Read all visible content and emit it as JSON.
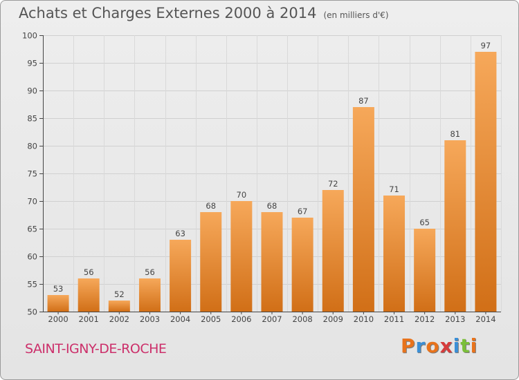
{
  "page": {
    "title": "Achats et Charges Externes 2000 à 2014",
    "subtitle": "(en milliers d'€)",
    "place": "SAINT-IGNY-DE-ROCHE",
    "logo": "Proxiti"
  },
  "colors": {
    "bar_light": "#f6a85a",
    "bar_dark": "#d16f17",
    "logo_letters": [
      "#e8731c",
      "#3b8fd6",
      "#e8731c",
      "#d63b3b",
      "#3b8fd6",
      "#7bbf3a",
      "#e8731c"
    ]
  },
  "chart_data": {
    "type": "bar",
    "title": "Achats et Charges Externes 2000 à 2014",
    "subtitle": "(en milliers d'€)",
    "xlabel": "",
    "ylabel": "",
    "categories": [
      "2000",
      "2001",
      "2002",
      "2003",
      "2004",
      "2005",
      "2006",
      "2007",
      "2008",
      "2009",
      "2010",
      "2011",
      "2012",
      "2013",
      "2014"
    ],
    "values": [
      53,
      56,
      52,
      56,
      63,
      68,
      70,
      68,
      67,
      72,
      87,
      71,
      65,
      81,
      97
    ],
    "ylim": [
      50,
      100
    ],
    "yticks": [
      50,
      55,
      60,
      65,
      70,
      75,
      80,
      85,
      90,
      95,
      100
    ],
    "grid": true
  }
}
